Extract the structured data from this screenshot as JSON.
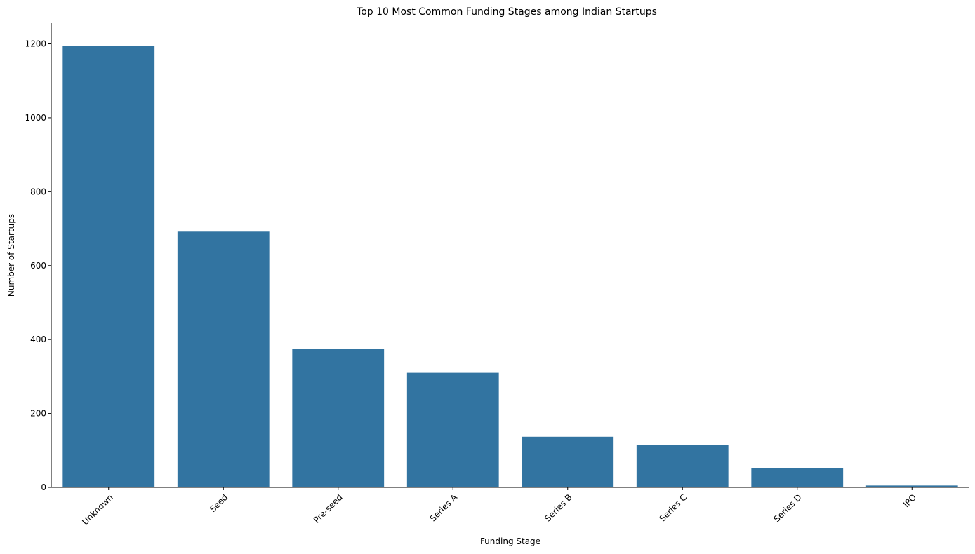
{
  "chart_data": {
    "type": "bar",
    "title": "Top 10 Most Common Funding Stages among Indian Startups",
    "xlabel": "Funding Stage",
    "ylabel": "Number of Startups",
    "categories": [
      "Unknown",
      "Seed",
      "Pre-seed",
      "Series A",
      "Series B",
      "Series C",
      "Series D",
      "IPO"
    ],
    "values": [
      1195,
      692,
      374,
      310,
      137,
      115,
      53,
      5
    ],
    "ylim": [
      0,
      1256
    ],
    "yticks": [
      0,
      200,
      400,
      600,
      800,
      1000,
      1200
    ],
    "x_tick_rotation": 45,
    "bar_color": "#3274a1",
    "grid": false,
    "legend": false
  }
}
